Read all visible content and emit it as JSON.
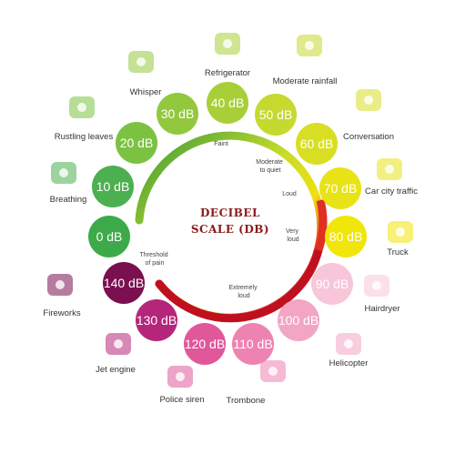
{
  "title": {
    "line1": "DECIBEL",
    "line2": "SCALE (DB)"
  },
  "ring_labels": [
    "Faint",
    "Moderate to quiet",
    "Loud",
    "Very loud",
    "Extremely loud",
    "Threshold of pain"
  ],
  "levels": [
    {
      "db": "0 dB",
      "label": "Breathing",
      "color": "#3daa49",
      "icon": "lungs-icon"
    },
    {
      "db": "10 dB",
      "label": "Breathing",
      "color": "#4caf50",
      "icon": "lungs-icon"
    },
    {
      "db": "20 dB",
      "label": "Rustling leaves",
      "color": "#7cc242",
      "icon": "leaves-icon"
    },
    {
      "db": "30 dB",
      "label": "Whisper",
      "color": "#93c83e",
      "icon": "whisper-icon"
    },
    {
      "db": "40 dB",
      "label": "Refrigerator",
      "color": "#a8cf38",
      "icon": "refrigerator-icon"
    },
    {
      "db": "50 dB",
      "label": "Moderate rainfall",
      "color": "#c6d92e",
      "icon": "umbrella-icon"
    },
    {
      "db": "60 dB",
      "label": "Conversation",
      "color": "#d8de24",
      "icon": "conversation-icon"
    },
    {
      "db": "70 dB",
      "label": "Car city traffic",
      "color": "#e8e317",
      "icon": "car-icon"
    },
    {
      "db": "80 dB",
      "label": "Truck",
      "color": "#f0e60a",
      "icon": "truck-icon"
    },
    {
      "db": "90 dB",
      "label": "Hairdryer",
      "color": "#f7c6d8",
      "icon": "hairdryer-icon"
    },
    {
      "db": "100 dB",
      "label": "Helicopter",
      "color": "#f2a6c4",
      "icon": "helicopter-icon"
    },
    {
      "db": "110 dB",
      "label": "Trombone",
      "color": "#ee82b0",
      "icon": "trombone-icon"
    },
    {
      "db": "120 dB",
      "label": "Police siren",
      "color": "#e0579a",
      "icon": "police-car-icon"
    },
    {
      "db": "130 dB",
      "label": "Jet engine",
      "color": "#b5267a",
      "icon": "jet-icon"
    },
    {
      "db": "140 dB",
      "label": "Fireworks",
      "color": "#7a1050",
      "icon": "fireworks-icon"
    }
  ]
}
